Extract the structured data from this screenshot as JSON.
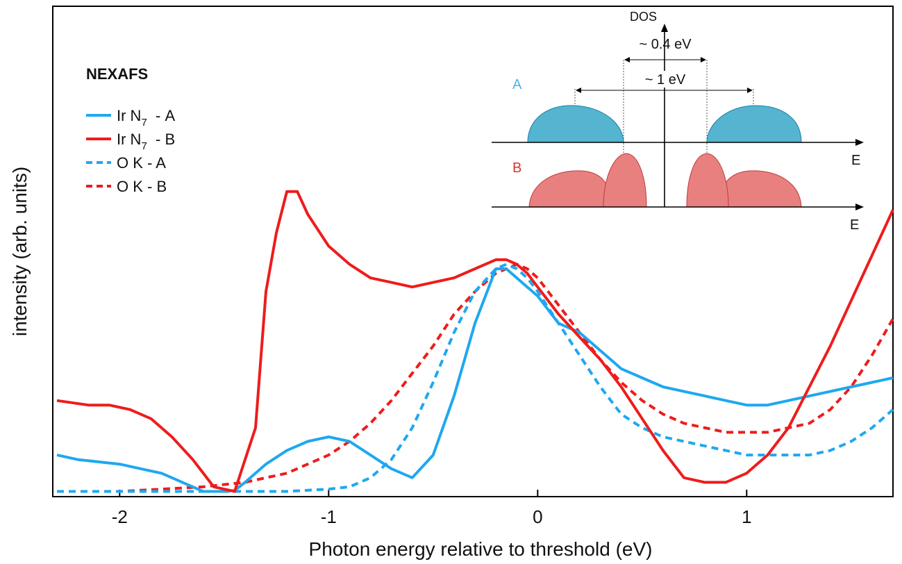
{
  "chart_data": {
    "type": "line",
    "title": "",
    "xlabel": "Photon energy relative to threshold (eV)",
    "ylabel": "intensity (arb. units)",
    "xlim": [
      -2.32,
      1.7
    ],
    "ylim": [
      0,
      1
    ],
    "x_ticks": [
      "-2",
      "-1",
      "0",
      "1"
    ],
    "x_tick_values": [
      -2,
      -1,
      0,
      1
    ],
    "legend": {
      "title": "NEXAFS",
      "placement": "top-left",
      "entries": [
        {
          "prefix": "Ir N",
          "sub": "7",
          "suffix": "  - A",
          "series": 0
        },
        {
          "prefix": "Ir N",
          "sub": "7",
          "suffix": "  - B",
          "series": 1
        },
        {
          "prefix": "O K - A",
          "sub": "",
          "suffix": "",
          "series": 2
        },
        {
          "prefix": "O K - B",
          "sub": "",
          "suffix": "",
          "series": 3
        }
      ]
    },
    "series": [
      {
        "name": "Ir N7 - A",
        "color": "#1ea8f0",
        "dashed": false,
        "x": [
          -2.3,
          -2.2,
          -2.0,
          -1.9,
          -1.8,
          -1.7,
          -1.6,
          -1.5,
          -1.45,
          -1.4,
          -1.3,
          -1.2,
          -1.1,
          -1.0,
          -0.9,
          -0.8,
          -0.7,
          -0.6,
          -0.5,
          -0.4,
          -0.35,
          -0.3,
          -0.25,
          -0.2,
          -0.15,
          -0.1,
          -0.05,
          0.0,
          0.1,
          0.2,
          0.3,
          0.4,
          0.5,
          0.6,
          0.7,
          0.8,
          0.9,
          1.0,
          1.1,
          1.2,
          1.3,
          1.4,
          1.5,
          1.6,
          1.7
        ],
        "y": [
          0.09,
          0.08,
          0.07,
          0.06,
          0.05,
          0.03,
          0.01,
          0.01,
          0.012,
          0.03,
          0.07,
          0.1,
          0.12,
          0.13,
          0.12,
          0.09,
          0.06,
          0.04,
          0.09,
          0.22,
          0.3,
          0.38,
          0.44,
          0.5,
          0.5,
          0.48,
          0.46,
          0.44,
          0.38,
          0.36,
          0.32,
          0.28,
          0.26,
          0.24,
          0.23,
          0.22,
          0.21,
          0.2,
          0.2,
          0.21,
          0.22,
          0.23,
          0.24,
          0.25,
          0.26
        ]
      },
      {
        "name": "Ir N7 - B",
        "color": "#ee1c1c",
        "dashed": false,
        "x": [
          -2.3,
          -2.15,
          -2.05,
          -1.95,
          -1.85,
          -1.75,
          -1.65,
          -1.55,
          -1.45,
          -1.35,
          -1.3,
          -1.25,
          -1.2,
          -1.15,
          -1.1,
          -1.0,
          -0.9,
          -0.8,
          -0.7,
          -0.6,
          -0.5,
          -0.4,
          -0.3,
          -0.2,
          -0.15,
          -0.1,
          -0.05,
          0.0,
          0.1,
          0.2,
          0.3,
          0.4,
          0.5,
          0.6,
          0.7,
          0.8,
          0.9,
          1.0,
          1.1,
          1.2,
          1.3,
          1.4,
          1.5,
          1.6,
          1.7
        ],
        "y": [
          0.21,
          0.2,
          0.2,
          0.19,
          0.17,
          0.13,
          0.08,
          0.02,
          0.01,
          0.15,
          0.45,
          0.58,
          0.67,
          0.67,
          0.62,
          0.55,
          0.51,
          0.48,
          0.47,
          0.46,
          0.47,
          0.48,
          0.5,
          0.52,
          0.52,
          0.51,
          0.49,
          0.46,
          0.4,
          0.35,
          0.3,
          0.24,
          0.17,
          0.1,
          0.04,
          0.03,
          0.03,
          0.05,
          0.09,
          0.15,
          0.24,
          0.33,
          0.43,
          0.53,
          0.63
        ]
      },
      {
        "name": "O K - A",
        "color": "#1ea8f0",
        "dashed": true,
        "x": [
          -2.3,
          -2.0,
          -1.8,
          -1.6,
          -1.4,
          -1.2,
          -1.0,
          -0.9,
          -0.8,
          -0.7,
          -0.6,
          -0.5,
          -0.4,
          -0.3,
          -0.2,
          -0.15,
          -0.1,
          -0.05,
          0.0,
          0.1,
          0.2,
          0.3,
          0.4,
          0.5,
          0.6,
          0.7,
          0.8,
          0.9,
          1.0,
          1.1,
          1.2,
          1.3,
          1.4,
          1.5,
          1.6,
          1.7
        ],
        "y": [
          0.01,
          0.01,
          0.01,
          0.01,
          0.01,
          0.01,
          0.015,
          0.02,
          0.04,
          0.08,
          0.15,
          0.25,
          0.36,
          0.45,
          0.5,
          0.51,
          0.5,
          0.48,
          0.45,
          0.38,
          0.31,
          0.24,
          0.18,
          0.15,
          0.13,
          0.12,
          0.11,
          0.1,
          0.09,
          0.09,
          0.09,
          0.09,
          0.1,
          0.12,
          0.15,
          0.19
        ]
      },
      {
        "name": "O K - B",
        "color": "#ee1c1c",
        "dashed": true,
        "x": [
          -2.3,
          -2.0,
          -1.8,
          -1.6,
          -1.5,
          -1.4,
          -1.3,
          -1.2,
          -1.1,
          -1.0,
          -0.9,
          -0.8,
          -0.7,
          -0.6,
          -0.5,
          -0.4,
          -0.3,
          -0.2,
          -0.15,
          -0.1,
          -0.05,
          0.0,
          0.1,
          0.2,
          0.3,
          0.4,
          0.5,
          0.6,
          0.7,
          0.8,
          0.9,
          1.0,
          1.1,
          1.2,
          1.3,
          1.4,
          1.5,
          1.6,
          1.7
        ],
        "y": [
          0.01,
          0.01,
          0.015,
          0.02,
          0.025,
          0.03,
          0.04,
          0.05,
          0.07,
          0.09,
          0.12,
          0.16,
          0.21,
          0.27,
          0.33,
          0.4,
          0.45,
          0.49,
          0.5,
          0.51,
          0.5,
          0.48,
          0.42,
          0.36,
          0.3,
          0.25,
          0.21,
          0.18,
          0.16,
          0.15,
          0.14,
          0.14,
          0.14,
          0.15,
          0.16,
          0.19,
          0.24,
          0.31,
          0.39
        ]
      }
    ]
  },
  "inset": {
    "dos_label": "DOS",
    "gap_small_label": "~ 0.4 eV",
    "gap_large_label": "~ 1 eV",
    "row_a_label": "A",
    "row_b_label": "B",
    "energy_label_a": "E",
    "energy_label_b": "E",
    "color_a_fill": "#55b4cf",
    "color_a_stroke": "#1a7fa8",
    "color_b_fill": "#e88080",
    "color_b_stroke": "#c0393b",
    "color_a_text": "#4fb3e0",
    "color_b_text": "#dd3333"
  }
}
